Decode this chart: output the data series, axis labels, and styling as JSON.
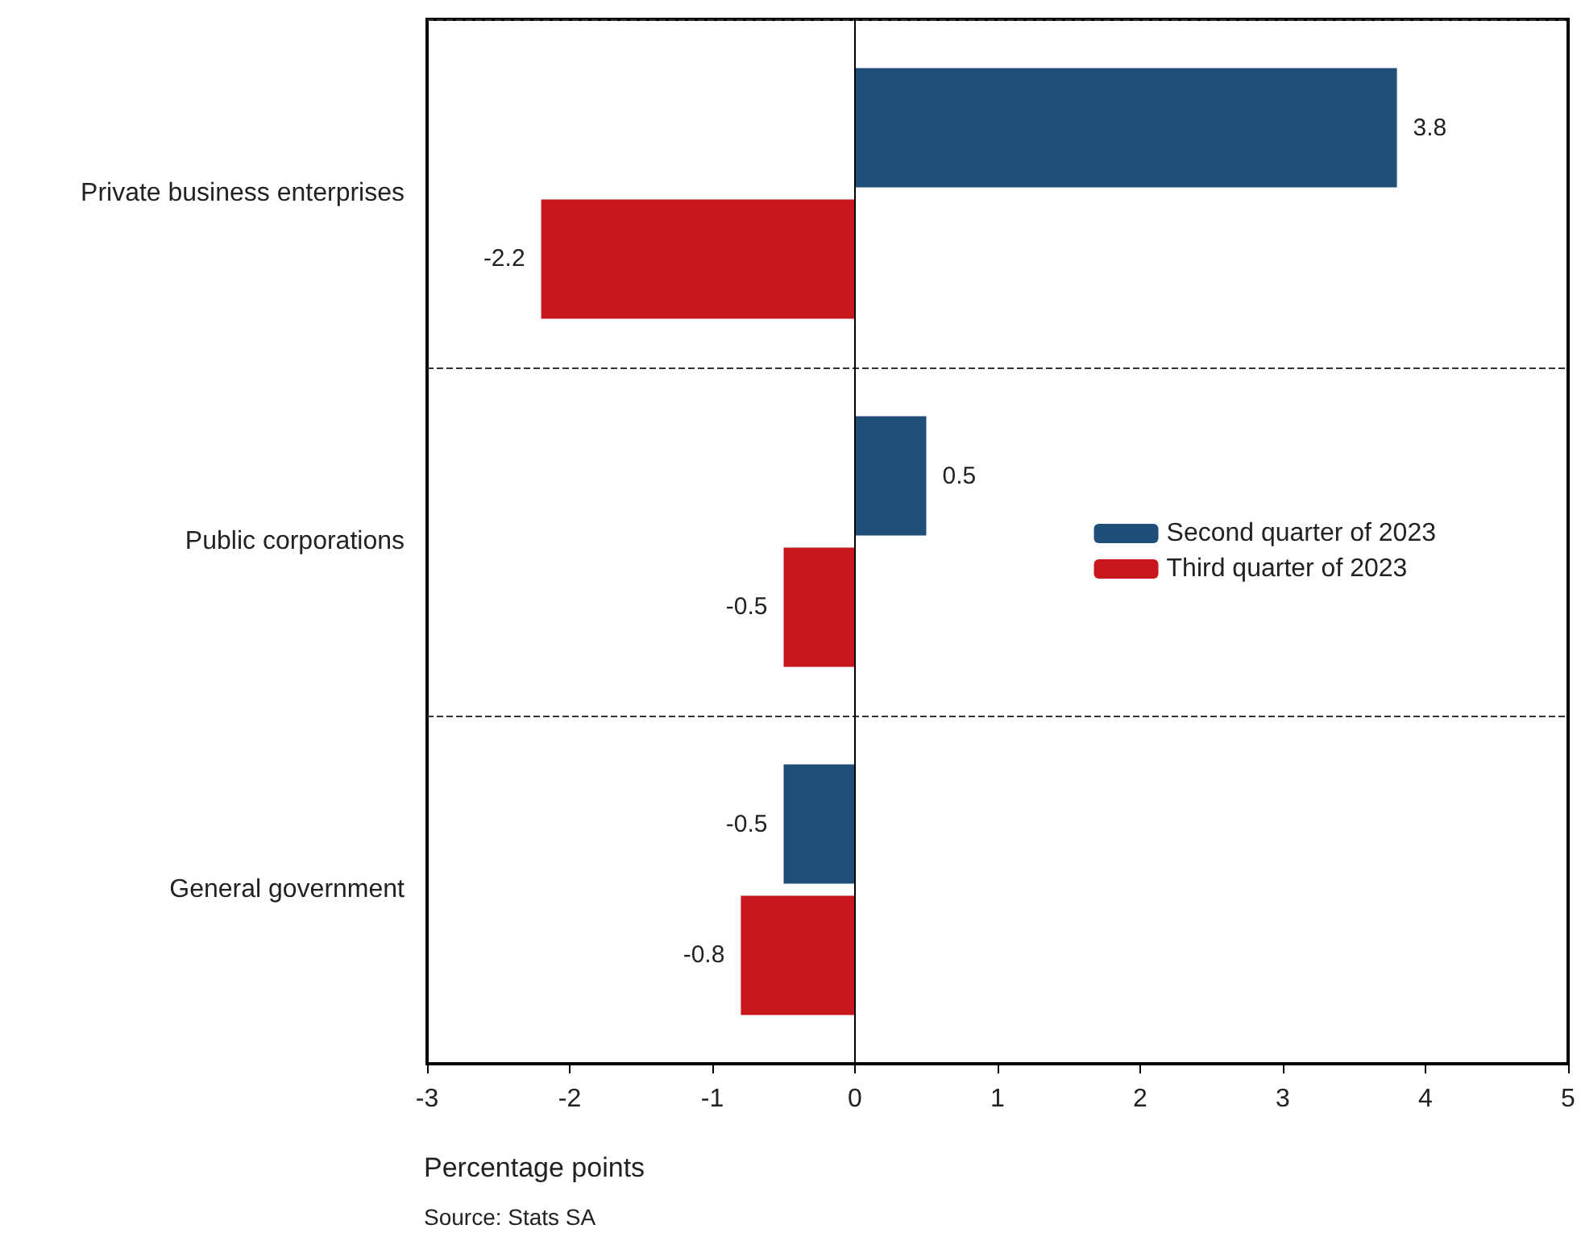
{
  "chart_data": {
    "type": "bar",
    "orientation": "horizontal",
    "categories": [
      "Private business enterprises",
      "Public corporations",
      "General government"
    ],
    "series": [
      {
        "name": "Second quarter of 2023",
        "color": "#1f4e79",
        "values": [
          3.8,
          0.5,
          -0.5
        ]
      },
      {
        "name": "Third quarter of 2023",
        "color": "#c8161d",
        "values": [
          -2.2,
          -0.5,
          -0.8
        ]
      }
    ],
    "xlim": [
      -3,
      5
    ],
    "xticks": [
      -3,
      -2,
      -1,
      0,
      1,
      2,
      3,
      4,
      5
    ],
    "xlabel": "Percentage points",
    "annotations": [
      "Source: Stats SA"
    ],
    "data_labels": true,
    "grid": "y",
    "line_style": "dashed",
    "legend": "right",
    "ref_lines": [
      {
        "axis": "x",
        "value": 0,
        "color": "#000000",
        "line_style": "solid"
      }
    ]
  }
}
